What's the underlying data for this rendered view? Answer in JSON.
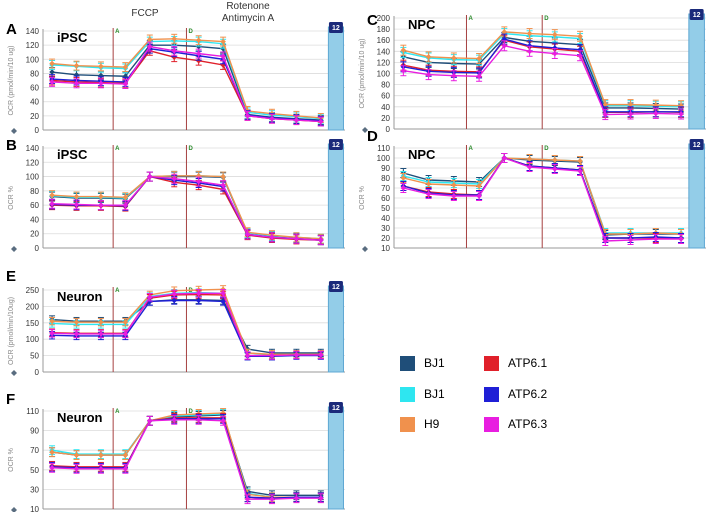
{
  "figure": {
    "top_labels": {
      "fccp": "FCCP",
      "rotenone": "Rotenone",
      "antimycin": "Antimycin A"
    },
    "inj_labels": {
      "a": "A",
      "d": "D"
    },
    "end_box_label": "12"
  },
  "legend": [
    {
      "label": "BJ1",
      "color": "#1f4e79"
    },
    {
      "label": "BJ1",
      "color": "#2ee6f0"
    },
    {
      "label": "H9",
      "color": "#f0914d"
    },
    {
      "label": "ATP6.1",
      "color": "#e0202a"
    },
    {
      "label": "ATP6.2",
      "color": "#1f1fd6"
    },
    {
      "label": "ATP6.3",
      "color": "#e81ee0"
    }
  ],
  "chart_data": [
    {
      "id": "A",
      "type": "line",
      "panel_letter": "A",
      "title": "iPSC",
      "ylabel": "OCR (pmol/min/10 ug)",
      "ylim": [
        0,
        140
      ],
      "yticks": [
        0,
        20,
        40,
        60,
        80,
        100,
        120,
        140
      ],
      "x": [
        1,
        2,
        3,
        4,
        5,
        6,
        7,
        8,
        9,
        10,
        11,
        12
      ],
      "injections": [
        3.5,
        6.5
      ],
      "series": [
        {
          "name": "BJ1",
          "values": [
            82,
            78,
            77,
            76,
            120,
            120,
            118,
            115,
            22,
            18,
            16,
            14
          ]
        },
        {
          "name": "BJ1",
          "values": [
            92,
            90,
            88,
            87,
            125,
            126,
            125,
            122,
            25,
            21,
            19,
            16
          ]
        },
        {
          "name": "H9",
          "values": [
            94,
            91,
            90,
            89,
            128,
            129,
            127,
            125,
            27,
            23,
            20,
            17
          ]
        },
        {
          "name": "ATP6.1",
          "values": [
            70,
            68,
            67,
            66,
            112,
            103,
            98,
            92,
            20,
            16,
            14,
            12
          ]
        },
        {
          "name": "ATP6.2",
          "values": [
            72,
            70,
            69,
            68,
            115,
            110,
            105,
            100,
            21,
            17,
            15,
            13
          ]
        },
        {
          "name": "ATP6.3",
          "values": [
            68,
            66,
            66,
            65,
            118,
            112,
            108,
            104,
            20,
            16,
            14,
            12
          ]
        }
      ]
    },
    {
      "id": "B",
      "type": "line",
      "panel_letter": "B",
      "title": "iPSC",
      "ylabel": "OCR %",
      "ylim": [
        0,
        140
      ],
      "yticks": [
        0,
        20,
        40,
        60,
        80,
        100,
        120,
        140
      ],
      "x": [
        1,
        2,
        3,
        4,
        5,
        6,
        7,
        8,
        9,
        10,
        11,
        12
      ],
      "injections": [
        3.5,
        6.5
      ],
      "series": [
        {
          "name": "BJ1",
          "values": [
            72,
            70,
            70,
            69,
            100,
            100,
            100,
            99,
            20,
            16,
            14,
            12
          ]
        },
        {
          "name": "BJ1",
          "values": [
            73,
            71,
            71,
            70,
            100,
            101,
            101,
            100,
            21,
            17,
            15,
            13
          ]
        },
        {
          "name": "H9",
          "values": [
            74,
            72,
            72,
            71,
            100,
            101,
            101,
            100,
            22,
            18,
            15,
            13
          ]
        },
        {
          "name": "ATP6.1",
          "values": [
            60,
            59,
            59,
            58,
            100,
            92,
            88,
            82,
            18,
            14,
            12,
            11
          ]
        },
        {
          "name": "ATP6.2",
          "values": [
            61,
            60,
            60,
            59,
            100,
            95,
            91,
            86,
            19,
            15,
            13,
            11
          ]
        },
        {
          "name": "ATP6.3",
          "values": [
            62,
            61,
            60,
            60,
            100,
            97,
            93,
            88,
            19,
            15,
            13,
            11
          ]
        }
      ]
    },
    {
      "id": "C",
      "type": "line",
      "panel_letter": "C",
      "title": "NPC",
      "ylabel": "OCR (pmol/min/10 ug)",
      "ylim": [
        0,
        200
      ],
      "yticks": [
        0,
        20,
        40,
        60,
        80,
        100,
        120,
        140,
        160,
        180,
        200
      ],
      "x": [
        1,
        2,
        3,
        4,
        5,
        6,
        7,
        8,
        9,
        10,
        11,
        12
      ],
      "injections": [
        3.5,
        6.5
      ],
      "series": [
        {
          "name": "BJ1",
          "values": [
            130,
            120,
            118,
            117,
            165,
            158,
            155,
            152,
            38,
            38,
            37,
            36
          ]
        },
        {
          "name": "BJ1",
          "values": [
            138,
            128,
            125,
            124,
            172,
            168,
            166,
            163,
            42,
            42,
            41,
            40
          ]
        },
        {
          "name": "H9",
          "values": [
            142,
            130,
            128,
            127,
            175,
            172,
            170,
            167,
            44,
            44,
            43,
            42
          ]
        },
        {
          "name": "ATP6.1",
          "values": [
            115,
            106,
            104,
            103,
            160,
            148,
            144,
            140,
            30,
            30,
            31,
            30
          ]
        },
        {
          "name": "ATP6.2",
          "values": [
            112,
            104,
            102,
            101,
            162,
            150,
            146,
            143,
            31,
            31,
            31,
            31
          ]
        },
        {
          "name": "ATP6.3",
          "values": [
            105,
            98,
            96,
            95,
            150,
            140,
            136,
            132,
            26,
            27,
            28,
            27
          ]
        }
      ]
    },
    {
      "id": "D",
      "type": "line",
      "panel_letter": "D",
      "title": "NPC",
      "ylabel": "OCR %",
      "ylim": [
        10,
        110
      ],
      "yticks": [
        10,
        20,
        30,
        40,
        50,
        60,
        70,
        80,
        90,
        100,
        110
      ],
      "x": [
        1,
        2,
        3,
        4,
        5,
        6,
        7,
        8,
        9,
        10,
        11,
        12
      ],
      "injections": [
        3.5,
        6.5
      ],
      "series": [
        {
          "name": "BJ1",
          "values": [
            85,
            78,
            77,
            76,
            100,
            98,
            97,
            96,
            23,
            24,
            24,
            24
          ]
        },
        {
          "name": "BJ1",
          "values": [
            82,
            76,
            75,
            74,
            100,
            99,
            98,
            97,
            25,
            25,
            25,
            25
          ]
        },
        {
          "name": "H9",
          "values": [
            80,
            74,
            73,
            72,
            100,
            99,
            98,
            97,
            24,
            24,
            25,
            24
          ]
        },
        {
          "name": "ATP6.1",
          "values": [
            72,
            66,
            64,
            63,
            100,
            92,
            90,
            88,
            20,
            20,
            20,
            20
          ]
        },
        {
          "name": "ATP6.2",
          "values": [
            72,
            65,
            63,
            63,
            100,
            92,
            90,
            88,
            20,
            20,
            21,
            20
          ]
        },
        {
          "name": "ATP6.3",
          "values": [
            70,
            64,
            62,
            62,
            100,
            91,
            89,
            87,
            17,
            18,
            19,
            19
          ]
        }
      ]
    },
    {
      "id": "E",
      "type": "line",
      "panel_letter": "E",
      "title": "Neuron",
      "ylabel": "OCR (pmol/min/10ug)",
      "ylim": [
        0,
        250
      ],
      "yticks": [
        0,
        50,
        100,
        150,
        200,
        250
      ],
      "x": [
        1,
        2,
        3,
        4,
        5,
        6,
        7,
        8,
        9,
        10,
        11,
        12
      ],
      "injections": [
        3.5,
        6.5
      ],
      "series": [
        {
          "name": "BJ1",
          "values": [
            160,
            155,
            155,
            155,
            215,
            220,
            220,
            218,
            70,
            58,
            58,
            58
          ]
        },
        {
          "name": "BJ1",
          "values": [
            148,
            145,
            145,
            145,
            230,
            240,
            242,
            240,
            58,
            52,
            52,
            52
          ]
        },
        {
          "name": "H9",
          "values": [
            155,
            152,
            152,
            152,
            235,
            248,
            250,
            252,
            58,
            54,
            54,
            54
          ]
        },
        {
          "name": "ATP6.1",
          "values": [
            120,
            118,
            118,
            118,
            225,
            235,
            236,
            235,
            50,
            50,
            52,
            52
          ]
        },
        {
          "name": "ATP6.2",
          "values": [
            112,
            110,
            110,
            110,
            215,
            218,
            218,
            215,
            48,
            48,
            50,
            50
          ]
        },
        {
          "name": "ATP6.3",
          "values": [
            118,
            116,
            116,
            116,
            228,
            238,
            240,
            240,
            50,
            50,
            52,
            52
          ]
        }
      ]
    },
    {
      "id": "F",
      "type": "line",
      "panel_letter": "F",
      "title": "Neuron",
      "ylabel": "OCR %",
      "ylim": [
        10,
        110
      ],
      "yticks": [
        10,
        30,
        50,
        70,
        90,
        110
      ],
      "x": [
        1,
        2,
        3,
        4,
        5,
        6,
        7,
        8,
        9,
        10,
        11,
        12
      ],
      "injections": [
        3.5,
        6.5
      ],
      "series": [
        {
          "name": "BJ1",
          "values": [
            68,
            65,
            65,
            65,
            100,
            104,
            105,
            106,
            28,
            24,
            24,
            24
          ]
        },
        {
          "name": "BJ1",
          "values": [
            70,
            66,
            66,
            66,
            100,
            105,
            106,
            107,
            26,
            22,
            22,
            22
          ]
        },
        {
          "name": "H9",
          "values": [
            68,
            65,
            65,
            65,
            100,
            106,
            107,
            108,
            25,
            22,
            22,
            22
          ]
        },
        {
          "name": "ATP6.1",
          "values": [
            54,
            53,
            53,
            53,
            100,
            103,
            103,
            103,
            22,
            21,
            22,
            22
          ]
        },
        {
          "name": "ATP6.2",
          "values": [
            53,
            52,
            52,
            52,
            100,
            102,
            102,
            102,
            22,
            21,
            22,
            22
          ]
        },
        {
          "name": "ATP6.3",
          "values": [
            52,
            51,
            51,
            51,
            100,
            101,
            101,
            100,
            20,
            20,
            21,
            21
          ]
        }
      ]
    }
  ]
}
